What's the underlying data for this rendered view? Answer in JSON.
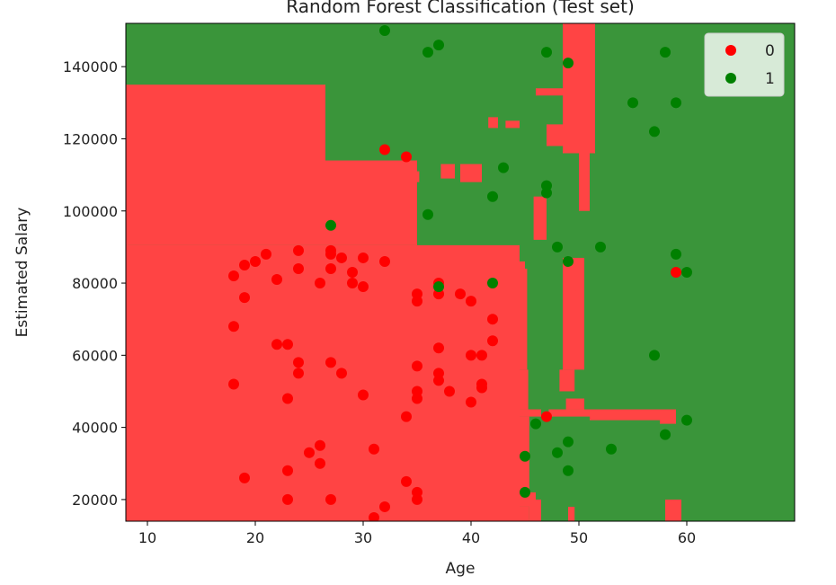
{
  "chart_data": {
    "type": "scatter",
    "title": "Random Forest Classification (Test set)",
    "xlabel": "Age",
    "ylabel": "Estimated Salary",
    "xlim": [
      8,
      70
    ],
    "ylim": [
      14000,
      152000
    ],
    "xticks": [
      10,
      20,
      30,
      40,
      50,
      60
    ],
    "yticks": [
      20000,
      40000,
      60000,
      80000,
      100000,
      120000,
      140000
    ],
    "grid": false,
    "legend_position": "top-right",
    "background_colors": {
      "class_0": "#ff4444",
      "class_1": "#3a953a"
    },
    "series": [
      {
        "name": "0",
        "color": "#ff0000",
        "points": [
          [
            32,
            117000
          ],
          [
            34,
            115000
          ],
          [
            18,
            82000
          ],
          [
            19,
            85000
          ],
          [
            20,
            86000
          ],
          [
            21,
            88000
          ],
          [
            19,
            76000
          ],
          [
            18,
            68000
          ],
          [
            22,
            81000
          ],
          [
            24,
            89000
          ],
          [
            24,
            84000
          ],
          [
            26,
            80000
          ],
          [
            27,
            89000
          ],
          [
            27,
            88000
          ],
          [
            27,
            84000
          ],
          [
            28,
            87000
          ],
          [
            29,
            83000
          ],
          [
            29,
            80000
          ],
          [
            30,
            79000
          ],
          [
            30,
            87000
          ],
          [
            32,
            86000
          ],
          [
            22,
            63000
          ],
          [
            23,
            63000
          ],
          [
            24,
            58000
          ],
          [
            24,
            55000
          ],
          [
            27,
            58000
          ],
          [
            28,
            55000
          ],
          [
            18,
            52000
          ],
          [
            23,
            48000
          ],
          [
            30,
            49000
          ],
          [
            34,
            43000
          ],
          [
            35,
            57000
          ],
          [
            35,
            50000
          ],
          [
            35,
            48000
          ],
          [
            37,
            62000
          ],
          [
            37,
            55000
          ],
          [
            37,
            53000
          ],
          [
            38,
            50000
          ],
          [
            35,
            75000
          ],
          [
            35,
            77000
          ],
          [
            37,
            77000
          ],
          [
            37,
            80000
          ],
          [
            39,
            77000
          ],
          [
            40,
            75000
          ],
          [
            40,
            60000
          ],
          [
            41,
            60000
          ],
          [
            41,
            52000
          ],
          [
            41,
            51000
          ],
          [
            40,
            47000
          ],
          [
            42,
            70000
          ],
          [
            42,
            64000
          ],
          [
            25,
            33000
          ],
          [
            26,
            35000
          ],
          [
            26,
            30000
          ],
          [
            23,
            28000
          ],
          [
            19,
            26000
          ],
          [
            23,
            20000
          ],
          [
            27,
            20000
          ],
          [
            31,
            34000
          ],
          [
            31,
            15000
          ],
          [
            32,
            18000
          ],
          [
            34,
            25000
          ],
          [
            35,
            22000
          ],
          [
            35,
            20000
          ],
          [
            47,
            43000
          ],
          [
            59,
            83000
          ]
        ]
      },
      {
        "name": "1",
        "color": "#008000",
        "points": [
          [
            32,
            150000
          ],
          [
            36,
            144000
          ],
          [
            37,
            146000
          ],
          [
            47,
            144000
          ],
          [
            49,
            141000
          ],
          [
            58,
            144000
          ],
          [
            55,
            130000
          ],
          [
            59,
            130000
          ],
          [
            57,
            122000
          ],
          [
            43,
            112000
          ],
          [
            47,
            107000
          ],
          [
            47,
            105000
          ],
          [
            42,
            104000
          ],
          [
            36,
            99000
          ],
          [
            27,
            96000
          ],
          [
            37,
            79000
          ],
          [
            42,
            80000
          ],
          [
            48,
            90000
          ],
          [
            49,
            86000
          ],
          [
            52,
            90000
          ],
          [
            59,
            88000
          ],
          [
            60,
            83000
          ],
          [
            57,
            60000
          ],
          [
            60,
            42000
          ],
          [
            58,
            38000
          ],
          [
            46,
            41000
          ],
          [
            48,
            33000
          ],
          [
            45,
            32000
          ],
          [
            49,
            36000
          ],
          [
            53,
            34000
          ],
          [
            49,
            28000
          ],
          [
            45,
            22000
          ]
        ]
      }
    ],
    "regions_class0": [
      [
        8,
        14000,
        44.5,
        90500
      ],
      [
        8,
        90500,
        26.5,
        135000
      ],
      [
        26.5,
        90500,
        35,
        114000
      ],
      [
        44.5,
        14000,
        45.4,
        18000
      ],
      [
        44.5,
        18000,
        46,
        22000
      ],
      [
        44.5,
        22000,
        45.4,
        43000
      ],
      [
        44.5,
        43000,
        46.5,
        45000
      ],
      [
        45.4,
        14000,
        46.5,
        20000
      ],
      [
        44.5,
        45000,
        45.3,
        56000
      ],
      [
        44.5,
        56000,
        45.2,
        84000
      ],
      [
        44.5,
        84000,
        45,
        86000
      ],
      [
        49,
        14000,
        49.6,
        18000
      ],
      [
        47.2,
        43000,
        51,
        45000
      ],
      [
        48.8,
        45000,
        50.5,
        48000
      ],
      [
        51,
        42000,
        57.5,
        45000
      ],
      [
        57.5,
        41000,
        59,
        45000
      ],
      [
        58,
        14000,
        59.5,
        20000
      ],
      [
        48.2,
        50000,
        49.6,
        56000
      ],
      [
        48.5,
        56000,
        50.5,
        87000
      ],
      [
        45.8,
        92000,
        47,
        104000
      ],
      [
        48.5,
        116000,
        51.5,
        152000
      ],
      [
        50,
        100000,
        51,
        125000
      ],
      [
        37.2,
        109000,
        38.5,
        113000
      ],
      [
        39,
        108000,
        41,
        113000
      ],
      [
        47,
        118000,
        49.5,
        124000
      ],
      [
        46,
        132000,
        49,
        134000
      ],
      [
        43.2,
        123000,
        44.5,
        125000
      ],
      [
        41.6,
        123000,
        42.5,
        126000
      ],
      [
        34.8,
        108000,
        35.2,
        111000
      ],
      [
        38,
        70000,
        40,
        71000
      ],
      [
        44.3,
        73000,
        45,
        74000
      ],
      [
        43.7,
        70000,
        44.3,
        71000
      ],
      [
        49.7,
        75000,
        50.5,
        78000
      ]
    ]
  }
}
